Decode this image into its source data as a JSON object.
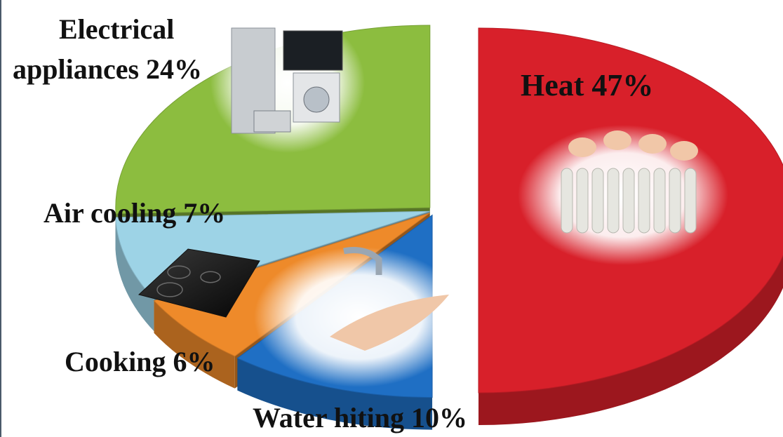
{
  "chart_data": {
    "type": "pie",
    "style": "3d-exploded",
    "slices": [
      {
        "key": "heat",
        "label": "Heat 47%",
        "name": "Heat",
        "value": 47,
        "color": "#d8202a",
        "picture": "radiator-warming-hands"
      },
      {
        "key": "water",
        "label": "Water hiting 10%",
        "name": "Water hiting",
        "value": 10,
        "color": "#1f6fc4",
        "picture": "washing-hands-tap"
      },
      {
        "key": "cooking",
        "label": "Cooking 6%",
        "name": "Cooking",
        "value": 6,
        "color": "#ee8a2a",
        "picture": "induction-hob"
      },
      {
        "key": "air",
        "label": "Air cooling 7%",
        "name": "Air cooling",
        "value": 7,
        "color": "#9dd3e6",
        "picture": ""
      },
      {
        "key": "appliances",
        "label": "Electrical appliances 24%",
        "name": "Electrical appliances",
        "value": 24,
        "color": "#8cbd3f",
        "picture": "home-appliances"
      }
    ],
    "labels": {
      "heat": "Heat 47%",
      "water": "Water hiting 10%",
      "cooking": "Cooking 6%",
      "air": "Air cooling 7%",
      "appliances_line1": "Electrical",
      "appliances_line2": "appliances 24%"
    },
    "title": "",
    "legend": "none"
  }
}
